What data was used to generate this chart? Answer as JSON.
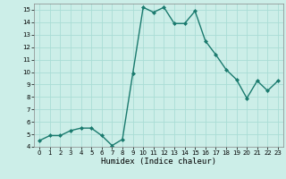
{
  "x": [
    0,
    1,
    2,
    3,
    4,
    5,
    6,
    7,
    8,
    9,
    10,
    11,
    12,
    13,
    14,
    15,
    16,
    17,
    18,
    19,
    20,
    21,
    22,
    23
  ],
  "y": [
    4.5,
    4.9,
    4.9,
    5.3,
    5.5,
    5.5,
    4.9,
    4.1,
    4.6,
    9.9,
    15.2,
    14.8,
    15.2,
    13.9,
    13.9,
    14.9,
    12.5,
    11.4,
    10.2,
    9.4,
    7.9,
    9.3,
    8.5,
    9.3
  ],
  "xlabel": "Humidex (Indice chaleur)",
  "xlim": [
    -0.5,
    23.5
  ],
  "ylim": [
    4,
    15.5
  ],
  "yticks": [
    4,
    5,
    6,
    7,
    8,
    9,
    10,
    11,
    12,
    13,
    14,
    15
  ],
  "xticks": [
    0,
    1,
    2,
    3,
    4,
    5,
    6,
    7,
    8,
    9,
    10,
    11,
    12,
    13,
    14,
    15,
    16,
    17,
    18,
    19,
    20,
    21,
    22,
    23
  ],
  "line_color": "#1a7a6e",
  "bg_color": "#cceee8",
  "grid_color": "#aaddd5",
  "marker": "D",
  "marker_size": 2.0,
  "line_width": 1.0
}
